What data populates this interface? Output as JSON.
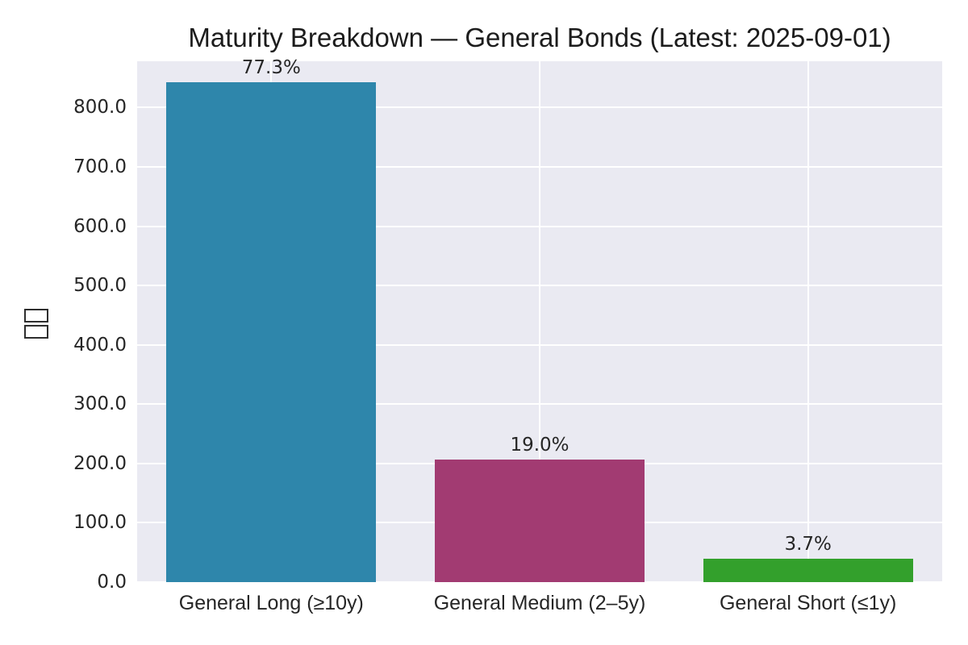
{
  "chart_data": {
    "type": "bar",
    "title": "Maturity Breakdown — General Bonds (Latest: 2025-09-01)",
    "categories": [
      "General Long (≥10y)",
      "General Medium (2–5y)",
      "General Short (≤1y)"
    ],
    "values": [
      843,
      207,
      40
    ],
    "bar_labels": [
      "77.3%",
      "19.0%",
      "3.7%"
    ],
    "bar_colors": [
      "#2E86AB",
      "#A23B72",
      "#33A02C"
    ],
    "ylabel": "□□",
    "ytick_values": [
      0,
      100,
      200,
      300,
      400,
      500,
      600,
      700,
      800
    ],
    "ytick_labels": [
      "0.0",
      "100.0",
      "200.0",
      "300.0",
      "400.0",
      "500.0",
      "600.0",
      "700.0",
      "800.0"
    ],
    "ylim": [
      0,
      878
    ],
    "xlabel": "",
    "grid": true,
    "legend_position": "none",
    "plot_background": "#EAEAF2",
    "grid_color": "#FFFFFF",
    "text_color": "#262626"
  }
}
